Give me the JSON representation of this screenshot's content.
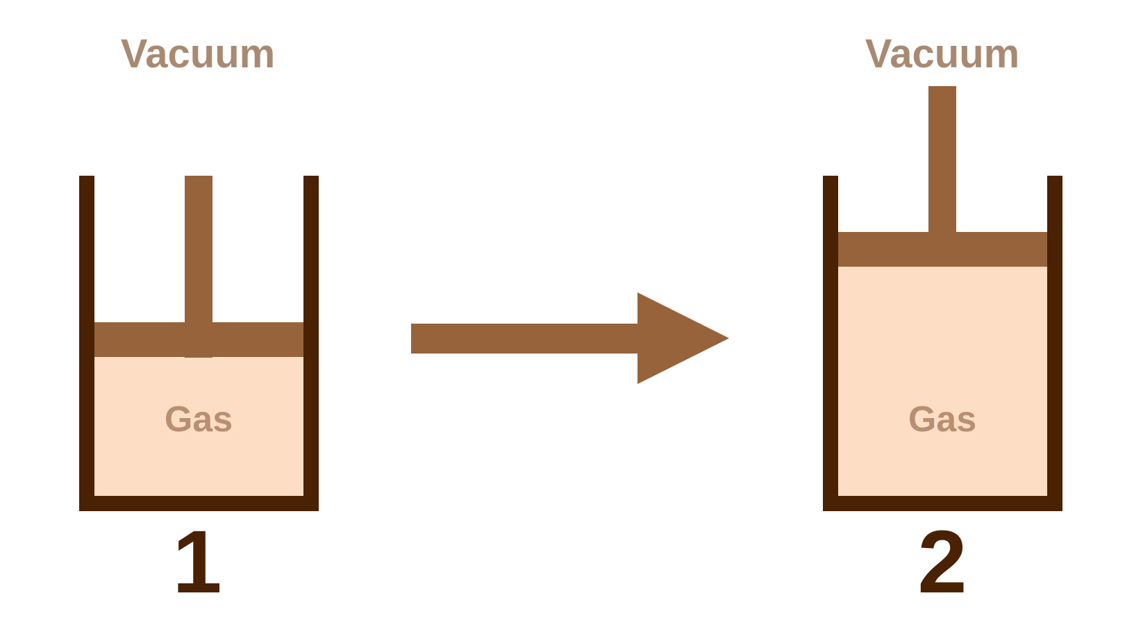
{
  "colors": {
    "wall": "#4a2102",
    "piston": "#96633b",
    "gas_fill": "#fdddc3",
    "vacuum_text": "#a88a73",
    "gas_text": "#b88f72",
    "state_text": "#4a2102",
    "background": "#ffffff"
  },
  "states": [
    {
      "vacuum_label": "Vacuum",
      "gas_label": "Gas",
      "state_number": "1"
    },
    {
      "vacuum_label": "Vacuum",
      "gas_label": "Gas",
      "state_number": "2"
    }
  ],
  "arrow_icon": "right-arrow-icon"
}
